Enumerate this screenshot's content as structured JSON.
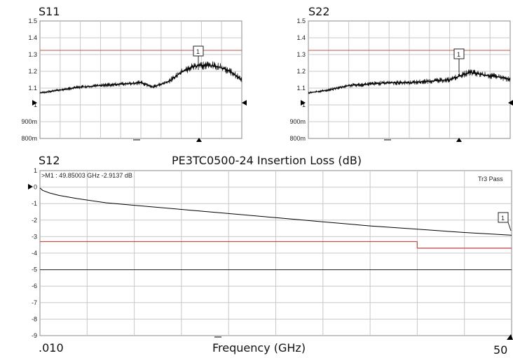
{
  "figure_title": "PE3TC0500-24 Insertion Loss (dB)",
  "x_start_label": ".010",
  "x_end_label": "50",
  "x_axis_label": "Frequency (GHz)",
  "chart_data": [
    {
      "type": "line",
      "panel": "S11",
      "title": "S11",
      "ylim": [
        0.7,
        1.5
      ],
      "ytick_labels": [
        "1.5",
        "1.4",
        "1.3",
        "1.2",
        "1.1",
        "1",
        "900m",
        "800m"
      ],
      "limit_line": 1.3,
      "limit_color": "#c0504d",
      "marker_label": "1",
      "x_range_ghz": [
        0.01,
        50
      ],
      "series": [
        {
          "x": [
            0.01,
            5,
            10,
            15,
            20,
            25,
            28,
            32,
            35,
            38,
            41,
            44,
            47,
            50
          ],
          "y": [
            1.01,
            1.03,
            1.05,
            1.06,
            1.07,
            1.08,
            1.05,
            1.09,
            1.15,
            1.19,
            1.2,
            1.19,
            1.16,
            1.1
          ]
        }
      ],
      "grid": true
    },
    {
      "type": "line",
      "panel": "S22",
      "title": "S22",
      "ylim": [
        0.7,
        1.5
      ],
      "ytick_labels": [
        "1.5",
        "1.4",
        "1.3",
        "1.2",
        "1.1",
        "1",
        "900m",
        "800m"
      ],
      "limit_line": 1.3,
      "limit_color": "#c0504d",
      "marker_label": "1",
      "x_range_ghz": [
        0.01,
        50
      ],
      "series": [
        {
          "x": [
            0.01,
            5,
            10,
            15,
            20,
            25,
            30,
            35,
            40,
            44,
            47,
            50
          ],
          "y": [
            1.01,
            1.03,
            1.06,
            1.07,
            1.08,
            1.08,
            1.09,
            1.1,
            1.15,
            1.13,
            1.12,
            1.1
          ]
        }
      ],
      "grid": true
    },
    {
      "type": "line",
      "panel": "S12",
      "title": "S12",
      "ylim": [
        -9,
        1
      ],
      "ytick_labels": [
        "1",
        "0",
        "-1",
        "-2",
        "-3",
        "-4",
        "-5",
        "-6",
        "-7",
        "-8",
        "-9"
      ],
      "marker_readout": ">M1 :  49.85003 GHz  -2.9137  dB",
      "status_text": "Tr3 Pass",
      "marker_label": "1",
      "limit_color": "#c0504d",
      "limit_lines": [
        {
          "x_from": 0.01,
          "x_to": 40,
          "y": -3.3
        },
        {
          "x_from": 40,
          "x_to": 50,
          "y": -3.7
        }
      ],
      "reference_line": -5,
      "x_range_ghz": [
        0.01,
        50
      ],
      "series": [
        {
          "x": [
            0.01,
            0.3,
            1,
            2,
            4,
            7,
            10,
            15,
            20,
            25,
            30,
            35,
            40,
            45,
            49.85,
            50
          ],
          "y": [
            -0.05,
            -0.2,
            -0.35,
            -0.5,
            -0.7,
            -0.95,
            -1.1,
            -1.35,
            -1.6,
            -1.85,
            -2.1,
            -2.35,
            -2.55,
            -2.75,
            -2.91,
            -2.92
          ]
        }
      ],
      "grid": true
    }
  ]
}
